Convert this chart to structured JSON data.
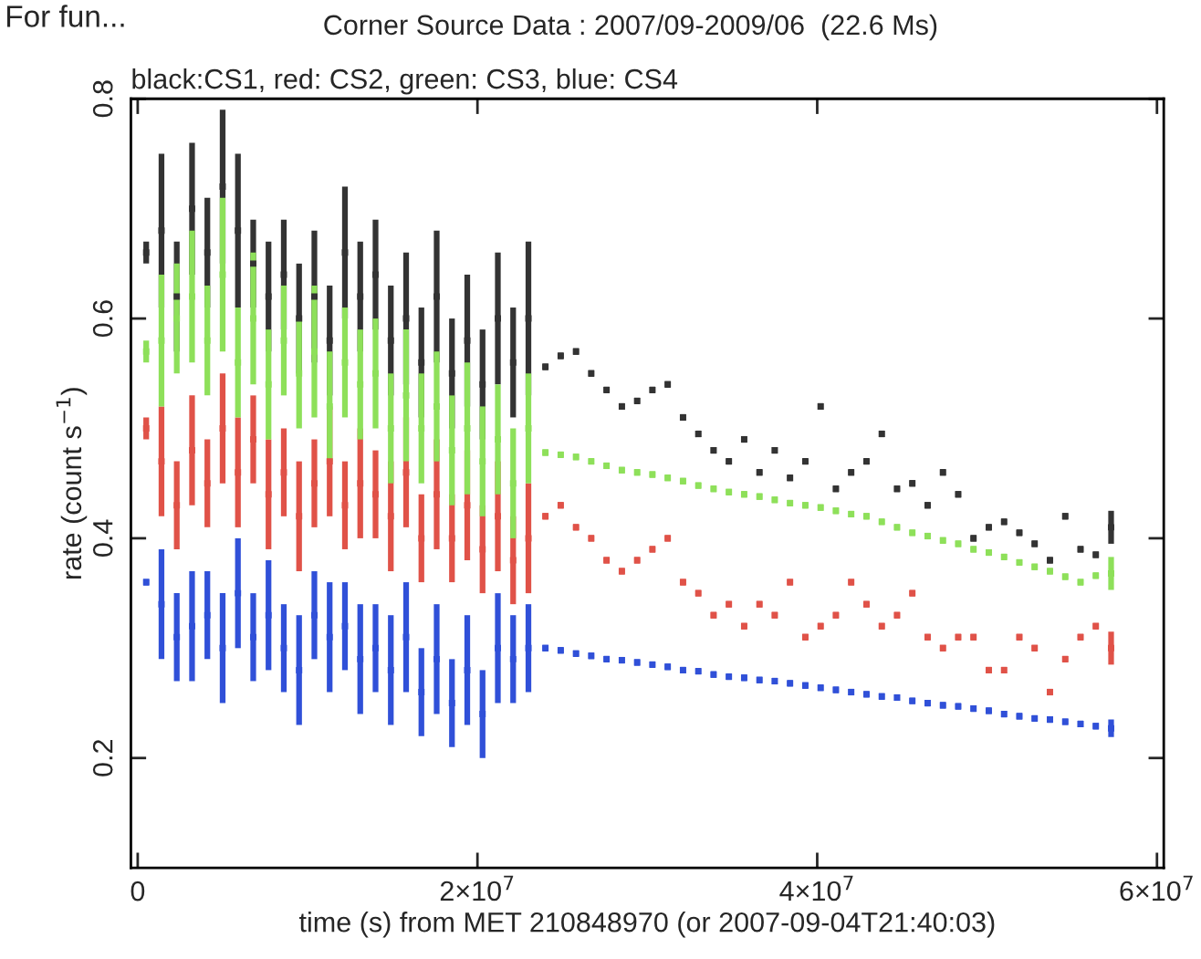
{
  "chart_data": {
    "type": "scatter",
    "marker": "square",
    "title": "Corner Source Data : 2007/09-2009/06  (22.6 Ms)",
    "subtitle": "black:CS1, red: CS2, green: CS3, blue: CS4",
    "xlabel": "time (s) from MET 210848970 (or 2007-09-04T21:40:03)",
    "ylabel": "rate (count s$^{−1}$)",
    "annotations": [
      "For fun..."
    ],
    "x": [
      500000,
      1400000,
      2300000,
      3200000,
      4100000,
      5000000,
      5900000,
      6800000,
      7700000,
      8600000,
      9500000,
      10400000,
      11300000,
      12200000,
      13100000,
      14000000,
      14900000,
      15800000,
      16700000,
      17600000,
      18500000,
      19400000,
      20300000,
      21200000,
      22100000,
      23000000,
      24000000,
      24900000,
      25800000,
      26700000,
      27600000,
      28500000,
      29400000,
      30300000,
      31200000,
      32100000,
      33000000,
      33900000,
      34800000,
      35700000,
      36600000,
      37500000,
      38400000,
      39300000,
      40200000,
      41100000,
      42000000,
      42900000,
      43800000,
      44700000,
      45600000,
      46500000,
      47400000,
      48300000,
      49200000,
      50100000,
      51000000,
      51900000,
      52800000,
      53700000,
      54600000,
      55500000,
      56400000,
      57300000
    ],
    "series": [
      {
        "color": "#333333",
        "values": [
          0.66,
          0.68,
          0.62,
          0.7,
          0.66,
          0.72,
          0.68,
          0.65,
          0.62,
          0.64,
          0.6,
          0.62,
          0.58,
          0.66,
          0.62,
          0.64,
          0.58,
          0.6,
          0.56,
          0.62,
          0.55,
          0.58,
          0.54,
          0.6,
          0.56,
          0.6,
          0.556,
          0.566,
          0.57,
          0.55,
          0.535,
          0.52,
          0.525,
          0.535,
          0.54,
          0.51,
          0.495,
          0.48,
          0.47,
          0.49,
          0.46,
          0.48,
          0.455,
          0.47,
          0.52,
          0.445,
          0.46,
          0.47,
          0.495,
          0.445,
          0.45,
          0.43,
          0.46,
          0.44,
          0.4,
          0.41,
          0.415,
          0.405,
          0.395,
          0.38,
          0.42,
          0.39,
          0.385,
          0.41
        ],
        "errors": [
          0.01,
          0.07,
          0.05,
          0.06,
          0.05,
          0.07,
          0.07,
          0.04,
          0.05,
          0.05,
          0.05,
          0.06,
          0.05,
          0.06,
          0.05,
          0.05,
          0.05,
          0.06,
          0.05,
          0.06,
          0.05,
          0.06,
          0.05,
          0.06,
          0.05,
          0.07,
          0.003,
          0.003,
          0.003,
          0.003,
          0.003,
          0.003,
          0.003,
          0.003,
          0.003,
          0.003,
          0.003,
          0.003,
          0.003,
          0.003,
          0.003,
          0.003,
          0.003,
          0.003,
          0.003,
          0.003,
          0.003,
          0.003,
          0.003,
          0.003,
          0.003,
          0.003,
          0.003,
          0.003,
          0.003,
          0.003,
          0.003,
          0.003,
          0.003,
          0.003,
          0.003,
          0.003,
          0.003,
          0.015
        ]
      },
      {
        "color": "#e05248",
        "values": [
          0.5,
          0.47,
          0.43,
          0.48,
          0.45,
          0.5,
          0.46,
          0.49,
          0.44,
          0.46,
          0.42,
          0.45,
          0.47,
          0.43,
          0.45,
          0.44,
          0.42,
          0.46,
          0.4,
          0.44,
          0.4,
          0.43,
          0.39,
          0.42,
          0.38,
          0.4,
          0.42,
          0.43,
          0.41,
          0.4,
          0.38,
          0.37,
          0.38,
          0.39,
          0.4,
          0.36,
          0.35,
          0.33,
          0.34,
          0.32,
          0.34,
          0.33,
          0.36,
          0.31,
          0.32,
          0.33,
          0.36,
          0.34,
          0.32,
          0.33,
          0.35,
          0.31,
          0.3,
          0.31,
          0.31,
          0.28,
          0.28,
          0.31,
          0.3,
          0.26,
          0.29,
          0.31,
          0.32,
          0.3
        ],
        "errors": [
          0.01,
          0.05,
          0.04,
          0.05,
          0.04,
          0.05,
          0.05,
          0.04,
          0.05,
          0.04,
          0.05,
          0.04,
          0.05,
          0.04,
          0.05,
          0.04,
          0.05,
          0.05,
          0.04,
          0.05,
          0.04,
          0.05,
          0.04,
          0.05,
          0.04,
          0.05,
          0.003,
          0.003,
          0.003,
          0.003,
          0.003,
          0.003,
          0.003,
          0.003,
          0.003,
          0.003,
          0.003,
          0.003,
          0.003,
          0.003,
          0.003,
          0.003,
          0.003,
          0.003,
          0.003,
          0.003,
          0.003,
          0.003,
          0.003,
          0.003,
          0.003,
          0.003,
          0.003,
          0.003,
          0.003,
          0.003,
          0.003,
          0.003,
          0.003,
          0.003,
          0.003,
          0.003,
          0.003,
          0.015
        ]
      },
      {
        "color": "#8ee05a",
        "values": [
          0.57,
          0.58,
          0.6,
          0.62,
          0.58,
          0.64,
          0.56,
          0.6,
          0.54,
          0.58,
          0.55,
          0.57,
          0.52,
          0.56,
          0.54,
          0.55,
          0.5,
          0.53,
          0.5,
          0.52,
          0.48,
          0.5,
          0.47,
          0.49,
          0.45,
          0.5,
          0.478,
          0.476,
          0.474,
          0.47,
          0.466,
          0.462,
          0.46,
          0.458,
          0.455,
          0.452,
          0.448,
          0.445,
          0.442,
          0.44,
          0.438,
          0.435,
          0.432,
          0.43,
          0.428,
          0.425,
          0.422,
          0.42,
          0.415,
          0.41,
          0.405,
          0.402,
          0.398,
          0.395,
          0.39,
          0.387,
          0.383,
          0.378,
          0.374,
          0.37,
          0.365,
          0.36,
          0.366,
          0.368
        ],
        "errors": [
          0.01,
          0.06,
          0.05,
          0.06,
          0.05,
          0.07,
          0.05,
          0.06,
          0.05,
          0.05,
          0.05,
          0.06,
          0.05,
          0.05,
          0.05,
          0.05,
          0.05,
          0.06,
          0.05,
          0.05,
          0.05,
          0.06,
          0.05,
          0.05,
          0.05,
          0.05,
          0.003,
          0.003,
          0.003,
          0.003,
          0.003,
          0.003,
          0.003,
          0.003,
          0.003,
          0.003,
          0.003,
          0.003,
          0.003,
          0.003,
          0.003,
          0.003,
          0.003,
          0.003,
          0.003,
          0.003,
          0.003,
          0.003,
          0.003,
          0.003,
          0.003,
          0.003,
          0.003,
          0.003,
          0.003,
          0.003,
          0.003,
          0.003,
          0.003,
          0.003,
          0.003,
          0.003,
          0.003,
          0.015
        ]
      },
      {
        "color": "#3050d8",
        "values": [
          0.36,
          0.34,
          0.31,
          0.32,
          0.33,
          0.3,
          0.35,
          0.31,
          0.33,
          0.3,
          0.28,
          0.33,
          0.31,
          0.32,
          0.29,
          0.3,
          0.28,
          0.31,
          0.26,
          0.29,
          0.25,
          0.28,
          0.24,
          0.3,
          0.29,
          0.3,
          0.3,
          0.298,
          0.295,
          0.293,
          0.29,
          0.289,
          0.287,
          0.285,
          0.283,
          0.28,
          0.279,
          0.276,
          0.274,
          0.273,
          0.271,
          0.27,
          0.268,
          0.266,
          0.264,
          0.262,
          0.26,
          0.258,
          0.256,
          0.255,
          0.252,
          0.25,
          0.248,
          0.247,
          0.245,
          0.243,
          0.24,
          0.238,
          0.236,
          0.235,
          0.233,
          0.231,
          0.229,
          0.227
        ],
        "errors": [
          0.003,
          0.05,
          0.04,
          0.05,
          0.04,
          0.05,
          0.05,
          0.04,
          0.05,
          0.04,
          0.05,
          0.04,
          0.05,
          0.04,
          0.05,
          0.04,
          0.05,
          0.05,
          0.04,
          0.05,
          0.04,
          0.05,
          0.04,
          0.05,
          0.04,
          0.04,
          0.003,
          0.003,
          0.003,
          0.003,
          0.003,
          0.003,
          0.003,
          0.003,
          0.003,
          0.003,
          0.003,
          0.003,
          0.003,
          0.003,
          0.003,
          0.003,
          0.003,
          0.003,
          0.003,
          0.003,
          0.003,
          0.003,
          0.003,
          0.003,
          0.003,
          0.003,
          0.003,
          0.003,
          0.003,
          0.003,
          0.003,
          0.003,
          0.003,
          0.003,
          0.003,
          0.003,
          0.003,
          0.008
        ]
      }
    ],
    "xlim": [
      -400000,
      60400000
    ],
    "xticks": [
      0,
      {
        "value": 20000000,
        "label": "2×10$^{7}$"
      },
      {
        "value": 40000000,
        "label": "4×10$^{7}$"
      },
      {
        "value": 60000000,
        "label": "6×10$^{7}$"
      }
    ],
    "ylim": [
      0.1,
      0.8
    ],
    "yticks": [
      0.2,
      0.4,
      0.6,
      0.8
    ]
  }
}
